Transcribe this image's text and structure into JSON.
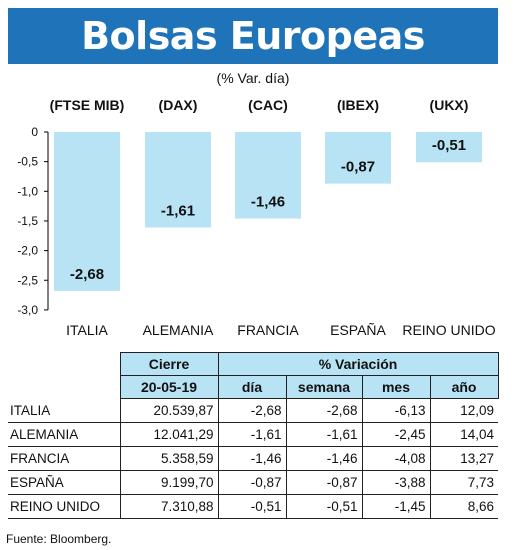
{
  "header": {
    "title": "Bolsas Europeas",
    "subtitle": "(% Var. día)"
  },
  "chart_data": {
    "type": "bar",
    "categories": [
      "ITALIA",
      "ALEMANIA",
      "FRANCIA",
      "ESPAÑA",
      "REINO UNIDO"
    ],
    "index_labels": [
      "(FTSE MIB)",
      "(DAX)",
      "(CAC)",
      "(IBEX)",
      "(UKX)"
    ],
    "values": [
      -2.68,
      -1.61,
      -1.46,
      -0.87,
      -0.51
    ],
    "value_labels": [
      "-2,68",
      "-1,61",
      "-1,46",
      "-0,87",
      "-0,51"
    ],
    "yticks": [
      0,
      -0.5,
      -1.0,
      -1.5,
      -2.0,
      -2.5,
      -3.0
    ],
    "ytick_labels": [
      "0",
      "-0,5",
      "-1,0",
      "-1,5",
      "-2,0",
      "-2,5",
      "-3,0"
    ],
    "ylim": [
      -3.0,
      0
    ],
    "bar_color": "#b7e3f4",
    "title": "",
    "xlabel": "",
    "ylabel": ""
  },
  "table": {
    "group_headers": {
      "cierre": "Cierre",
      "variacion": "% Variación"
    },
    "sub_headers": {
      "date": "20-05-19",
      "dia": "día",
      "semana": "semana",
      "mes": "mes",
      "anio": "año"
    },
    "rows": [
      {
        "country": "ITALIA",
        "cierre": "20.539,87",
        "dia": "-2,68",
        "semana": "-2,68",
        "mes": "-6,13",
        "anio": "12,09"
      },
      {
        "country": "ALEMANIA",
        "cierre": "12.041,29",
        "dia": "-1,61",
        "semana": "-1,61",
        "mes": "-2,45",
        "anio": "14,04"
      },
      {
        "country": "FRANCIA",
        "cierre": "5.358,59",
        "dia": "-1,46",
        "semana": "-1,46",
        "mes": "-4,08",
        "anio": "13,27"
      },
      {
        "country": "ESPAÑA",
        "cierre": "9.199,70",
        "dia": "-0,87",
        "semana": "-0,87",
        "mes": "-3,88",
        "anio": "7,73"
      },
      {
        "country": "REINO UNIDO",
        "cierre": "7.310,88",
        "dia": "-0,51",
        "semana": "-0,51",
        "mes": "-1,45",
        "anio": "8,66"
      }
    ]
  },
  "footer": {
    "source": "Fuente: Bloomberg."
  }
}
